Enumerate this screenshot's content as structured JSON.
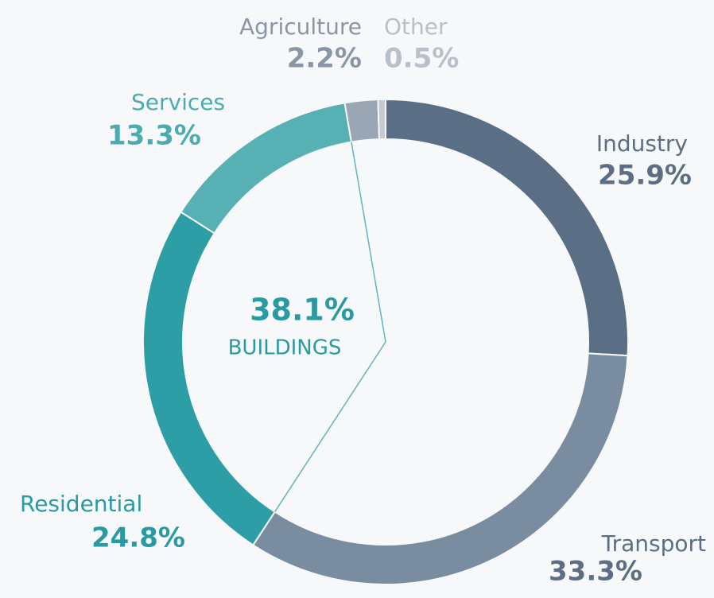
{
  "chart_data": {
    "type": "donut",
    "categories": [
      "Industry",
      "Transport",
      "Residential",
      "Services",
      "Agriculture",
      "Other"
    ],
    "values": [
      25.9,
      33.3,
      24.8,
      13.3,
      2.2,
      0.5
    ],
    "value_labels": [
      "25.9%",
      "33.3%",
      "24.8%",
      "13.3%",
      "2.2%",
      "0.5%"
    ],
    "colors": [
      "#5a6f86",
      "#7a8ca0",
      "#2e9ea6",
      "#56b0b4",
      "#9aa6b4",
      "#c3cad2"
    ],
    "center_value": 38.1,
    "center_value_label": "38.1%",
    "center_label": "BUILDINGS"
  }
}
